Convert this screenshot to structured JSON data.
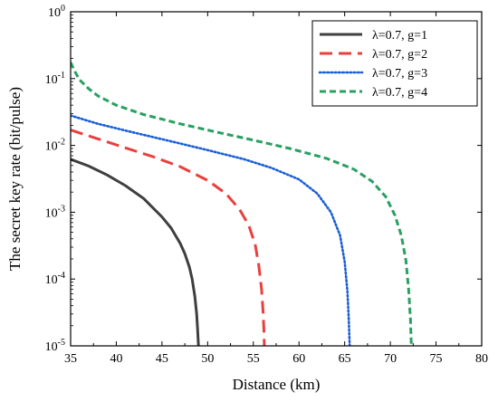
{
  "chart_data": {
    "type": "line",
    "xlabel": "Distance (km)",
    "ylabel": "The secret key rate (bit/pulse)",
    "xlim": [
      35,
      80
    ],
    "ylim": [
      1e-05,
      1
    ],
    "yscale": "log",
    "grid": false,
    "legend_position": "top-right",
    "x_ticks": [
      "35",
      "40",
      "45",
      "50",
      "55",
      "60",
      "65",
      "70",
      "75",
      "80"
    ],
    "y_ticks": [
      {
        "base": "10",
        "exp": "0"
      },
      {
        "base": "10",
        "exp": "-1"
      },
      {
        "base": "10",
        "exp": "-2"
      },
      {
        "base": "10",
        "exp": "-3"
      },
      {
        "base": "10",
        "exp": "-4"
      },
      {
        "base": "10",
        "exp": "-5"
      }
    ],
    "series": [
      {
        "name": "λ=0.7, g=1",
        "color": "#3f3f3f",
        "dash": "solid",
        "x": [
          35,
          37,
          39,
          41,
          43,
          45,
          46,
          47,
          47.5,
          48,
          48.3,
          48.6,
          48.8,
          48.9,
          49.0
        ],
        "y": [
          0.0062,
          0.0049,
          0.0036,
          0.0025,
          0.0016,
          0.00085,
          0.00058,
          0.00034,
          0.00024,
          0.00015,
          0.0001,
          5.5e-05,
          3e-05,
          1.8e-05,
          1e-05
        ]
      },
      {
        "name": "λ=0.7, g=2",
        "color": "#e8403e",
        "dash": "dashed",
        "x": [
          35,
          38,
          41,
          44,
          47,
          50,
          52,
          53.5,
          54.5,
          55.2,
          55.6,
          55.9,
          56.05,
          56.15,
          56.2
        ],
        "y": [
          0.017,
          0.0125,
          0.0092,
          0.0068,
          0.0048,
          0.003,
          0.0019,
          0.0011,
          0.00064,
          0.00033,
          0.00016,
          7e-05,
          3.5e-05,
          1.8e-05,
          1e-05
        ]
      },
      {
        "name": "λ=0.7, g=3",
        "color": "#1b5fd6",
        "dash": "dotted",
        "x": [
          35,
          38,
          42,
          46,
          50,
          54,
          57,
          60,
          62,
          63.5,
          64.5,
          65.0,
          65.3,
          65.45,
          65.55
        ],
        "y": [
          0.028,
          0.021,
          0.0155,
          0.0115,
          0.0085,
          0.0062,
          0.0046,
          0.0031,
          0.0019,
          0.001,
          0.00045,
          0.00018,
          6.5e-05,
          2.5e-05,
          1e-05
        ]
      },
      {
        "name": "λ=0.7, g=4",
        "color": "#27a060",
        "dash": "short-dashed",
        "x": [
          35,
          35.5,
          36,
          37,
          38,
          40,
          43,
          47,
          51,
          55,
          59,
          63,
          66,
          68,
          69.5,
          70.5,
          71.2,
          71.7,
          72.0,
          72.2,
          72.3
        ],
        "y": [
          0.175,
          0.125,
          0.095,
          0.07,
          0.055,
          0.04,
          0.029,
          0.021,
          0.0158,
          0.012,
          0.009,
          0.0064,
          0.0044,
          0.0029,
          0.0017,
          0.0009,
          0.00045,
          0.00019,
          7e-05,
          2.5e-05,
          1e-05
        ]
      }
    ]
  }
}
